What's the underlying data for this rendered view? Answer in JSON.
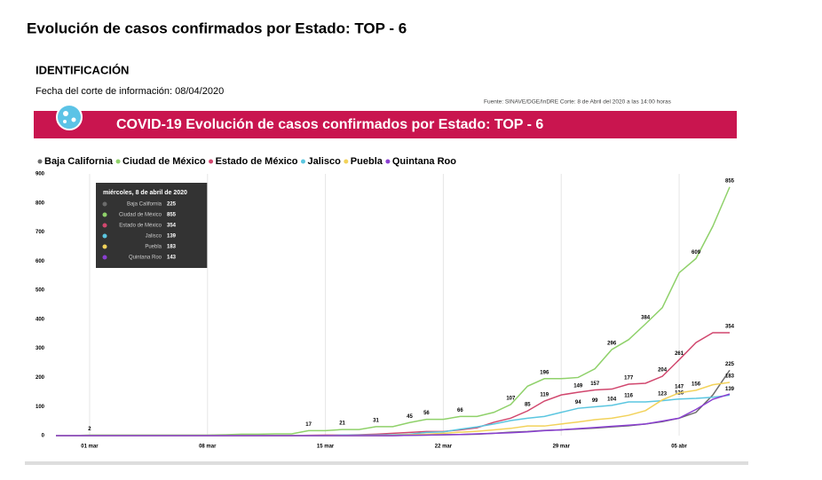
{
  "header": {
    "title": "Evolución de casos confirmados por Estado: TOP - 6",
    "section": "IDENTIFICACIÓN",
    "cutoff": "Fecha del corte de información: 08/04/2020",
    "source": "Fuente: SINAVE/DGE/InDRE Corte: 8 de Abril del 2020 a las 14:00 horas",
    "banner": "COVID-19 Evolución de casos confirmados por Estado: TOP - 6"
  },
  "tooltip": {
    "title": "miércoles, 8 de abril de 2020"
  },
  "chart_data": {
    "type": "line",
    "categories": [
      null,
      null,
      "01 mar",
      null,
      null,
      null,
      null,
      null,
      null,
      "08 mar",
      null,
      null,
      null,
      null,
      null,
      null,
      "15 mar",
      null,
      null,
      null,
      null,
      null,
      null,
      "22 mar",
      null,
      null,
      null,
      null,
      null,
      null,
      "29 mar",
      null,
      null,
      null,
      null,
      null,
      null,
      "05 abr",
      null,
      null,
      null
    ],
    "series": [
      {
        "name": "Baja California",
        "color": "#6b6b6b",
        "values": [
          0,
          0,
          0,
          0,
          0,
          0,
          0,
          0,
          0,
          0,
          0,
          0,
          0,
          0,
          0,
          0,
          0,
          0,
          0,
          0,
          0,
          1,
          2,
          3,
          4,
          5,
          8,
          12,
          14,
          18,
          20,
          23,
          26,
          30,
          34,
          40,
          48,
          60,
          80,
          140,
          225
        ],
        "value_labels": [
          null,
          null,
          null,
          null,
          null,
          null,
          null,
          null,
          null,
          null,
          null,
          null,
          null,
          null,
          null,
          null,
          null,
          null,
          null,
          null,
          null,
          null,
          null,
          null,
          null,
          null,
          null,
          null,
          null,
          null,
          null,
          null,
          null,
          null,
          null,
          null,
          null,
          null,
          null,
          null,
          "225"
        ]
      },
      {
        "name": "Ciudad de México",
        "color": "#8fd16a",
        "values": [
          0,
          0,
          2,
          2,
          2,
          2,
          2,
          2,
          2,
          2,
          3,
          5,
          5,
          6,
          6,
          17,
          17,
          21,
          21,
          31,
          31,
          45,
          56,
          56,
          66,
          66,
          80,
          107,
          170,
          196,
          196,
          200,
          230,
          296,
          330,
          384,
          440,
          560,
          609,
          720,
          855
        ],
        "value_labels": [
          null,
          null,
          "2",
          null,
          null,
          null,
          null,
          null,
          null,
          null,
          null,
          null,
          null,
          null,
          null,
          "17",
          null,
          "21",
          null,
          "31",
          null,
          "45",
          "56",
          null,
          "66",
          null,
          null,
          "107",
          null,
          "196",
          null,
          null,
          null,
          "296",
          null,
          "384",
          null,
          null,
          "609",
          null,
          "855"
        ]
      },
      {
        "name": "Estado de México",
        "color": "#d1476e",
        "values": [
          0,
          0,
          0,
          0,
          0,
          0,
          0,
          0,
          0,
          0,
          0,
          0,
          0,
          0,
          0,
          1,
          2,
          2,
          3,
          5,
          8,
          11,
          14,
          14,
          20,
          27,
          46,
          60,
          85,
          119,
          140,
          149,
          157,
          160,
          177,
          180,
          204,
          261,
          320,
          354,
          354
        ],
        "value_labels": [
          null,
          null,
          null,
          null,
          null,
          null,
          null,
          null,
          null,
          null,
          null,
          null,
          null,
          null,
          null,
          null,
          null,
          null,
          null,
          null,
          null,
          null,
          null,
          null,
          null,
          null,
          null,
          null,
          "85",
          "119",
          null,
          "149",
          "157",
          null,
          "177",
          null,
          "204",
          "261",
          null,
          null,
          "354"
        ]
      },
      {
        "name": "Jalisco",
        "color": "#5bc6e0",
        "values": [
          0,
          0,
          0,
          0,
          0,
          0,
          0,
          0,
          0,
          0,
          0,
          0,
          0,
          0,
          0,
          0,
          0,
          2,
          2,
          2,
          3,
          5,
          11,
          13,
          22,
          30,
          40,
          52,
          60,
          66,
          80,
          94,
          99,
          104,
          116,
          116,
          120,
          126,
          128,
          132,
          139
        ],
        "value_labels": [
          null,
          null,
          null,
          null,
          null,
          null,
          null,
          null,
          null,
          null,
          null,
          null,
          null,
          null,
          null,
          null,
          null,
          null,
          null,
          null,
          null,
          null,
          null,
          null,
          null,
          null,
          null,
          null,
          null,
          null,
          null,
          "94",
          "99",
          "104",
          "116",
          null,
          null,
          "126",
          null,
          null,
          "139"
        ]
      },
      {
        "name": "Puebla",
        "color": "#f2d25a",
        "values": [
          0,
          0,
          0,
          0,
          0,
          0,
          0,
          0,
          0,
          0,
          0,
          0,
          0,
          0,
          0,
          0,
          0,
          0,
          0,
          0,
          1,
          3,
          5,
          8,
          12,
          15,
          20,
          25,
          33,
          33,
          40,
          47,
          55,
          60,
          70,
          86,
          123,
          147,
          156,
          175,
          183
        ],
        "value_labels": [
          null,
          null,
          null,
          null,
          null,
          null,
          null,
          null,
          null,
          null,
          null,
          null,
          null,
          null,
          null,
          null,
          null,
          null,
          null,
          null,
          null,
          null,
          null,
          null,
          null,
          null,
          null,
          null,
          null,
          null,
          null,
          null,
          null,
          null,
          null,
          null,
          "123",
          "147",
          "156",
          null,
          "183"
        ]
      },
      {
        "name": "Quintana Roo",
        "color": "#8a3fd1",
        "values": [
          0,
          0,
          0,
          0,
          0,
          0,
          0,
          0,
          0,
          0,
          0,
          0,
          0,
          0,
          0,
          0,
          0,
          0,
          0,
          0,
          0,
          1,
          2,
          3,
          4,
          6,
          8,
          10,
          13,
          17,
          20,
          24,
          28,
          32,
          36,
          40,
          50,
          60,
          90,
          125,
          143
        ],
        "value_labels": [
          null,
          null,
          null,
          null,
          null,
          null,
          null,
          null,
          null,
          null,
          null,
          null,
          null,
          null,
          null,
          null,
          null,
          null,
          null,
          null,
          null,
          null,
          null,
          null,
          null,
          null,
          null,
          null,
          null,
          null,
          null,
          null,
          null,
          null,
          null,
          null,
          null,
          null,
          null,
          null,
          null
        ]
      }
    ],
    "ylim": [
      0,
      900
    ],
    "yticks": [
      0,
      100,
      200,
      300,
      400,
      500,
      600,
      700,
      800,
      900
    ],
    "grid": true
  }
}
